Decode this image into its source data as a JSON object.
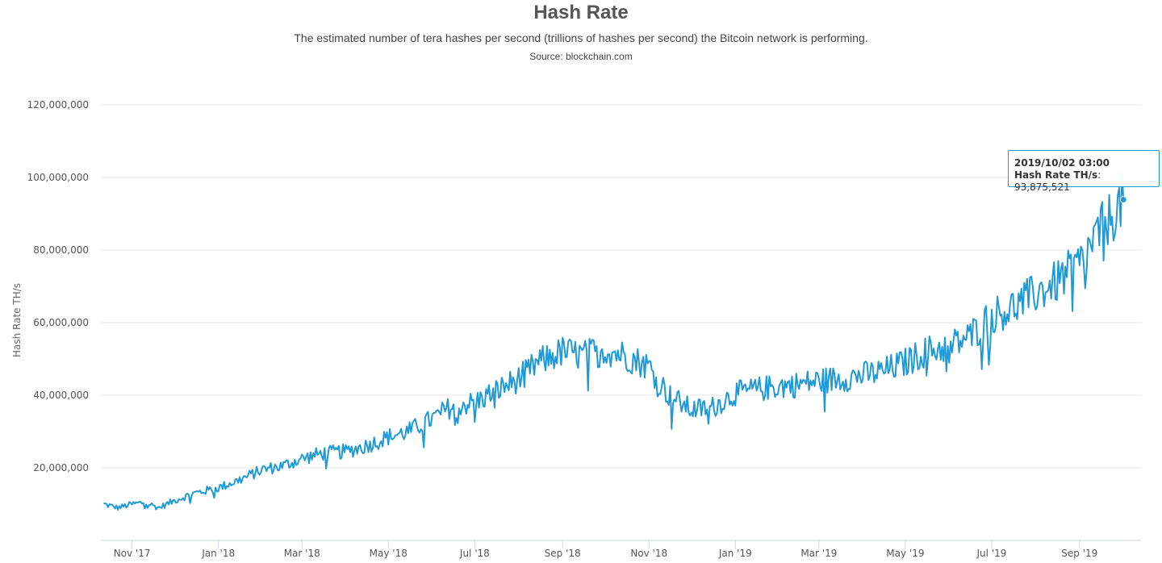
{
  "chart_data": {
    "type": "line",
    "title": "Hash Rate",
    "subtitle": "The estimated number of tera hashes per second (trillions of hashes per second) the Bitcoin network is performing.",
    "source": "Source: blockchain.com",
    "ylabel": "Hash Rate TH/s",
    "xlabel": "",
    "ylim": [
      0,
      120000000
    ],
    "yticks": [
      {
        "value": 20000000,
        "label": "20,000,000"
      },
      {
        "value": 40000000,
        "label": "40,000,000"
      },
      {
        "value": 60000000,
        "label": "60,000,000"
      },
      {
        "value": 80000000,
        "label": "80,000,000"
      },
      {
        "value": 100000000,
        "label": "100,000,000"
      },
      {
        "value": 120000000,
        "label": "120,000,000"
      }
    ],
    "xlim": [
      "2017-10-10",
      "2019-10-15"
    ],
    "xticks": [
      {
        "date": "2017-11-01",
        "label": "Nov '17"
      },
      {
        "date": "2018-01-01",
        "label": "Jan '18"
      },
      {
        "date": "2018-03-01",
        "label": "Mar '18"
      },
      {
        "date": "2018-05-01",
        "label": "May '18"
      },
      {
        "date": "2018-07-01",
        "label": "Jul '18"
      },
      {
        "date": "2018-09-01",
        "label": "Sep '18"
      },
      {
        "date": "2018-11-01",
        "label": "Nov '18"
      },
      {
        "date": "2019-01-01",
        "label": "Jan '19"
      },
      {
        "date": "2019-03-01",
        "label": "Mar '19"
      },
      {
        "date": "2019-05-01",
        "label": "May '19"
      },
      {
        "date": "2019-07-01",
        "label": "Jul '19"
      },
      {
        "date": "2019-09-01",
        "label": "Sep '19"
      }
    ],
    "grid": true,
    "legend": "none",
    "series": [
      {
        "color": "#1f9ad6",
        "points": [
          [
            "2017-10-12",
            10000000
          ],
          [
            "2017-10-22",
            9000000
          ],
          [
            "2017-11-01",
            10000000
          ],
          [
            "2017-11-10",
            10500000
          ],
          [
            "2017-11-20",
            9000000
          ],
          [
            "2017-12-01",
            11000000
          ],
          [
            "2017-12-15",
            13000000
          ],
          [
            "2018-01-01",
            14500000
          ],
          [
            "2018-01-15",
            16500000
          ],
          [
            "2018-02-01",
            19500000
          ],
          [
            "2018-02-15",
            20500000
          ],
          [
            "2018-03-01",
            22500000
          ],
          [
            "2018-03-15",
            24000000
          ],
          [
            "2018-04-01",
            24500000
          ],
          [
            "2018-04-15",
            26000000
          ],
          [
            "2018-05-01",
            28500000
          ],
          [
            "2018-05-15",
            30000000
          ],
          [
            "2018-06-01",
            33500000
          ],
          [
            "2018-06-15",
            37000000
          ],
          [
            "2018-07-01",
            38000000
          ],
          [
            "2018-07-15",
            41000000
          ],
          [
            "2018-08-01",
            44500000
          ],
          [
            "2018-08-15",
            49000000
          ],
          [
            "2018-09-01",
            52000000
          ],
          [
            "2018-09-15",
            51000000
          ],
          [
            "2018-10-01",
            52500000
          ],
          [
            "2018-10-15",
            51000000
          ],
          [
            "2018-11-01",
            48000000
          ],
          [
            "2018-11-15",
            40000000
          ],
          [
            "2018-12-01",
            36000000
          ],
          [
            "2018-12-15",
            36500000
          ],
          [
            "2019-01-01",
            40500000
          ],
          [
            "2019-01-15",
            41500000
          ],
          [
            "2019-02-01",
            42500000
          ],
          [
            "2019-02-15",
            43000000
          ],
          [
            "2019-03-01",
            44000000
          ],
          [
            "2019-03-15",
            44500000
          ],
          [
            "2019-04-01",
            45500000
          ],
          [
            "2019-04-15",
            46500000
          ],
          [
            "2019-05-01",
            49000000
          ],
          [
            "2019-05-15",
            52000000
          ],
          [
            "2019-06-01",
            53500000
          ],
          [
            "2019-06-15",
            56000000
          ],
          [
            "2019-07-01",
            62000000
          ],
          [
            "2019-07-15",
            64000000
          ],
          [
            "2019-08-01",
            68000000
          ],
          [
            "2019-08-15",
            71000000
          ],
          [
            "2019-09-01",
            76000000
          ],
          [
            "2019-09-15",
            85000000
          ],
          [
            "2019-09-25",
            90000000
          ],
          [
            "2019-10-02",
            93875521
          ]
        ]
      }
    ],
    "tooltip": {
      "date": "2019/10/02 03:00",
      "label": "Hash Rate TH/s",
      "value": "93,875,521"
    }
  }
}
